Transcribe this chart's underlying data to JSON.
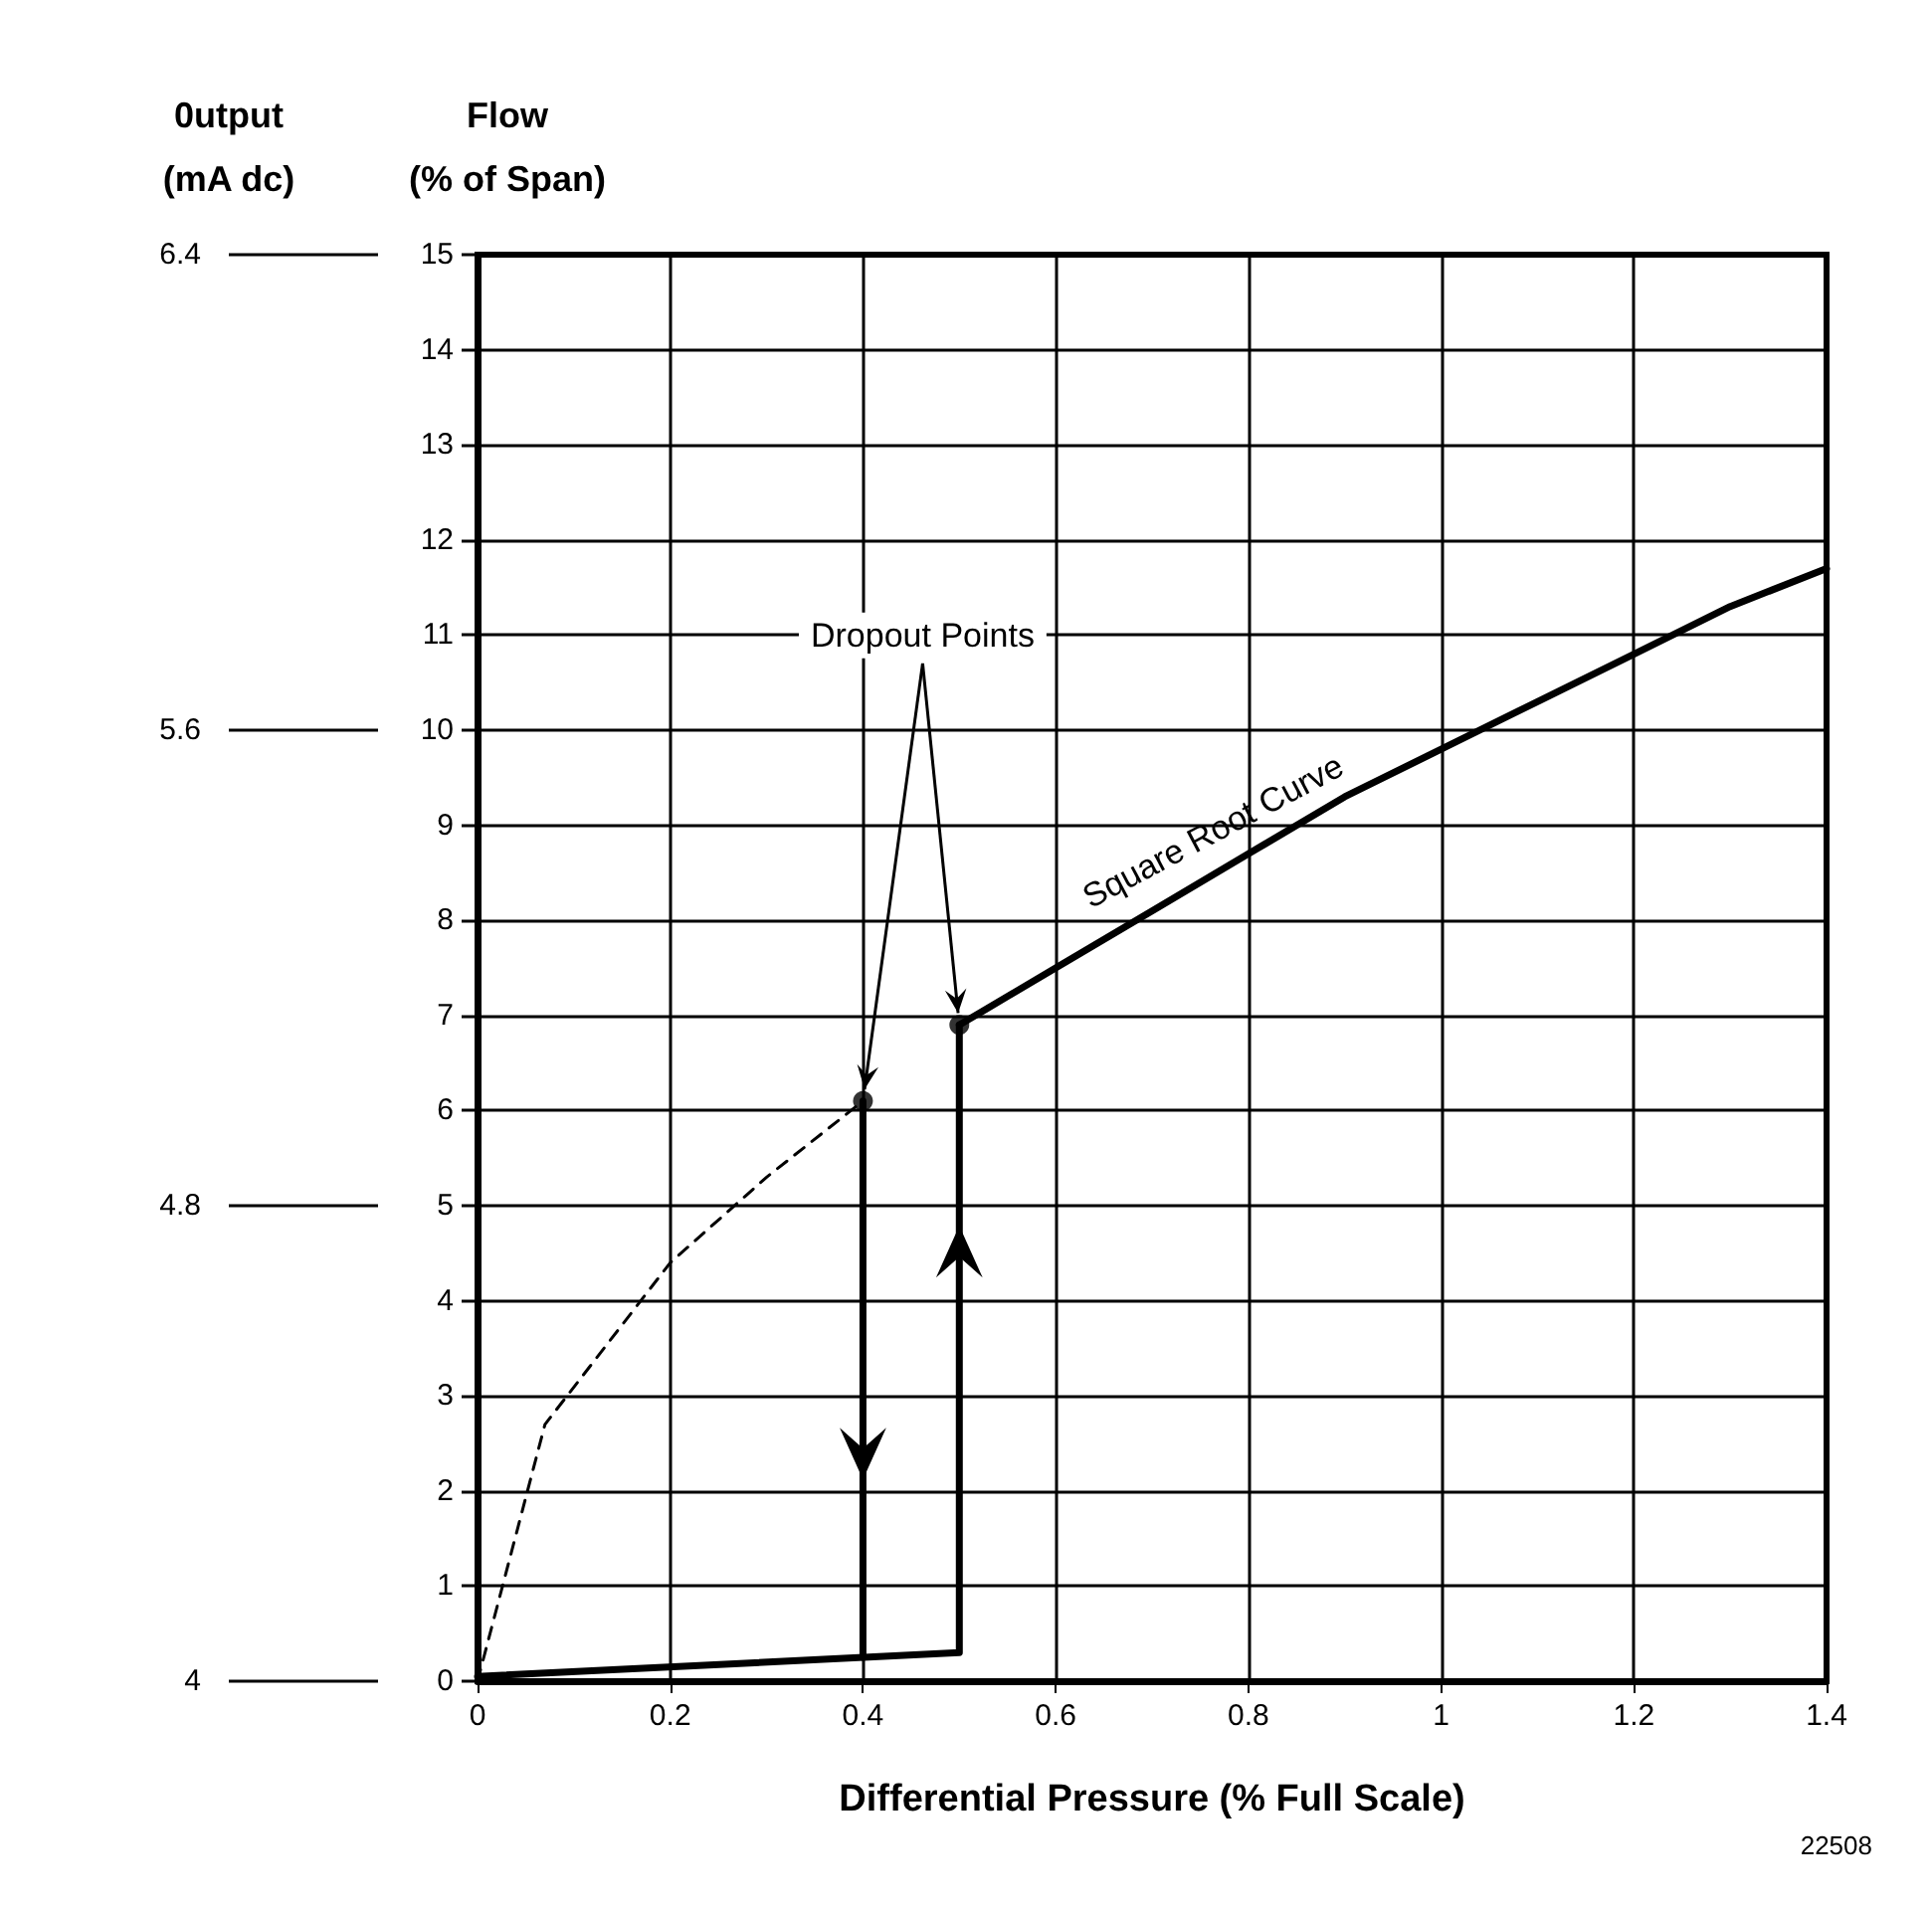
{
  "chart_data": {
    "type": "line",
    "xlabel": "Differential Pressure (% Full Scale)",
    "ylabel": "Flow\n(% of Span)",
    "y2label": "0utput\n(mA dc)",
    "xlim": [
      0,
      1.4
    ],
    "xticks": [
      0,
      0.2,
      0.4,
      0.6,
      0.8,
      1,
      1.2,
      1.4
    ],
    "ylim": [
      0,
      15
    ],
    "yticks": [
      0,
      1,
      2,
      3,
      4,
      5,
      6,
      7,
      8,
      9,
      10,
      11,
      12,
      13,
      14,
      15
    ],
    "y2lim": [
      4,
      6.4
    ],
    "y2ticks": [
      4,
      4.8,
      5.6,
      6.4
    ],
    "grid": true,
    "series": [
      {
        "color": "#000000",
        "line_style": "solid",
        "x": [
          0.5,
          0.6,
          0.7,
          0.8,
          0.9,
          1.0,
          1.1,
          1.2,
          1.3,
          1.4
        ],
        "values": [
          6.9,
          7.5,
          8.1,
          8.7,
          9.3,
          9.8,
          10.3,
          10.8,
          11.3,
          11.7
        ]
      },
      {
        "color": "#000000",
        "line_style": "dashed",
        "x": [
          0,
          0.07,
          0.2,
          0.3,
          0.4
        ],
        "values": [
          0,
          2.7,
          4.4,
          5.3,
          6.1
        ]
      },
      {
        "color": "#000000",
        "line_style": "solid",
        "x": [
          0,
          0.5,
          0.5
        ],
        "values": [
          0.05,
          0.3,
          6.9
        ]
      },
      {
        "color": "#000000",
        "line_style": "solid",
        "x": [
          0.4,
          0.4
        ],
        "values": [
          6.1,
          0.25
        ]
      },
      {
        "type": "scatter",
        "color": "#000000",
        "marker": "circle",
        "x": [
          0.4,
          0.5
        ],
        "values": [
          6.1,
          6.9
        ]
      }
    ],
    "annotations": [
      {
        "text": "Dropout Points",
        "x": 0.4,
        "y": 6.1
      },
      {
        "text": "Square Root Curve",
        "x": 0.78,
        "y": 8.6
      },
      "22508"
    ]
  }
}
